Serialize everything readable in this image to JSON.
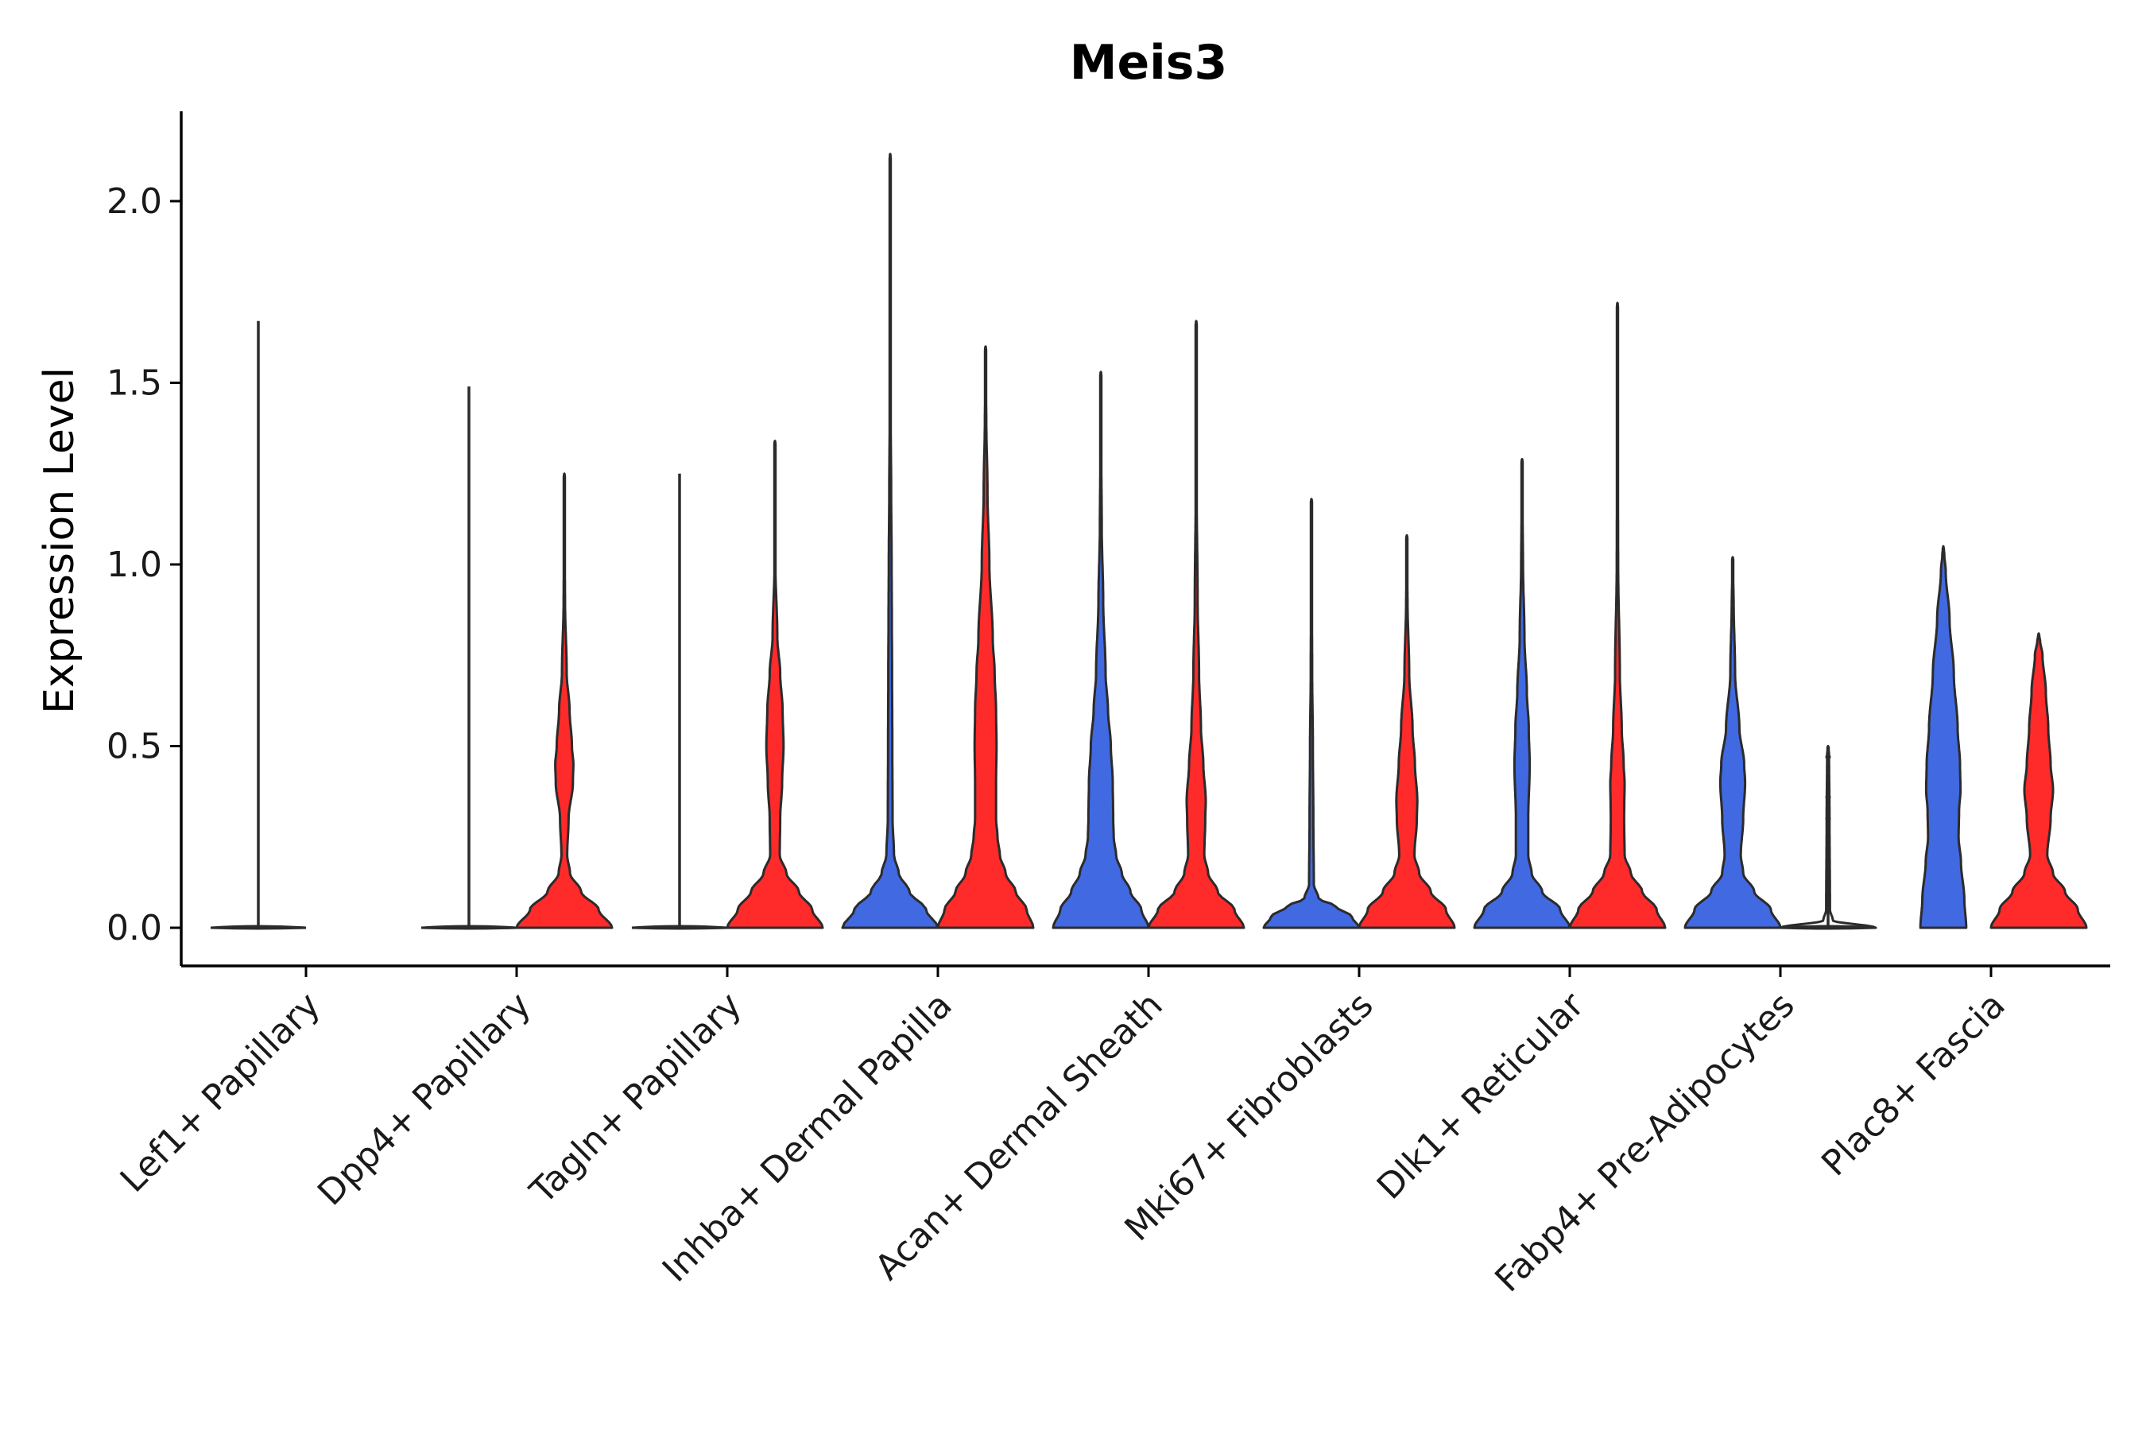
{
  "chart_data": {
    "type": "violin",
    "title": "Meis3",
    "xlabel": "",
    "ylabel": "Expression Level",
    "ylim": [
      -0.1,
      2.25
    ],
    "yticks": [
      "0.0",
      "0.5",
      "1.0",
      "1.5",
      "2.0"
    ],
    "grid": false,
    "legend": "none",
    "colors": {
      "group_a": "#4169e1",
      "group_b": "#ff2a2a",
      "outline": "#2b2b2b"
    },
    "categories": [
      "Lef1+ Papillary",
      "Dpp4+ Papillary",
      "Tagln+ Papillary",
      "Inhba+ Dermal Papilla",
      "Acan+ Dermal Sheath",
      "Mki67+ Fibroblasts",
      "Dlk1+ Reticular",
      "Fabp4+ Pre-Adipocytes",
      "Plac8+ Fascia"
    ],
    "series": [
      {
        "name": "group_a",
        "color": "#4169e1",
        "max_values": [
          1.67,
          1.49,
          1.25,
          2.13,
          1.53,
          1.18,
          1.29,
          1.02,
          1.03
        ],
        "density_profile": [
          [
            [
              0,
              1
            ]
          ],
          [
            [
              0,
              1
            ]
          ],
          [
            [
              0,
              1
            ]
          ],
          [
            [
              0,
              1
            ],
            [
              0.05,
              0.75
            ],
            [
              0.1,
              0.4
            ],
            [
              0.15,
              0.18
            ],
            [
              0.2,
              0.08
            ],
            [
              0.3,
              0.05
            ],
            [
              0.5,
              0.045
            ],
            [
              0.7,
              0.04
            ],
            [
              0.85,
              0.035
            ],
            [
              1.0,
              0.03
            ],
            [
              1.2,
              0.02
            ],
            [
              1.5,
              0.005
            ]
          ],
          [
            [
              0,
              1
            ],
            [
              0.05,
              0.85
            ],
            [
              0.1,
              0.62
            ],
            [
              0.15,
              0.44
            ],
            [
              0.2,
              0.32
            ],
            [
              0.25,
              0.27
            ],
            [
              0.3,
              0.26
            ],
            [
              0.4,
              0.25
            ],
            [
              0.5,
              0.21
            ],
            [
              0.6,
              0.15
            ],
            [
              0.7,
              0.1
            ],
            [
              0.9,
              0.05
            ],
            [
              1.1,
              0.02
            ],
            [
              1.3,
              0.01
            ]
          ],
          [
            [
              0,
              1
            ],
            [
              0.03,
              0.85
            ],
            [
              0.06,
              0.5
            ],
            [
              0.08,
              0.15
            ],
            [
              0.12,
              0.05
            ],
            [
              0.3,
              0.04
            ],
            [
              0.5,
              0.03
            ],
            [
              0.7,
              0.015
            ],
            [
              1.0,
              0.005
            ]
          ],
          [
            [
              0,
              1
            ],
            [
              0.05,
              0.8
            ],
            [
              0.1,
              0.42
            ],
            [
              0.15,
              0.2
            ],
            [
              0.2,
              0.13
            ],
            [
              0.3,
              0.13
            ],
            [
              0.45,
              0.16
            ],
            [
              0.55,
              0.14
            ],
            [
              0.65,
              0.1
            ],
            [
              0.8,
              0.05
            ],
            [
              1.0,
              0.02
            ]
          ],
          [
            [
              0,
              1
            ],
            [
              0.05,
              0.8
            ],
            [
              0.1,
              0.45
            ],
            [
              0.15,
              0.22
            ],
            [
              0.2,
              0.17
            ],
            [
              0.3,
              0.22
            ],
            [
              0.4,
              0.26
            ],
            [
              0.45,
              0.24
            ],
            [
              0.55,
              0.14
            ],
            [
              0.7,
              0.05
            ],
            [
              0.9,
              0.02
            ]
          ],
          [
            [
              0,
              0.48
            ],
            [
              0.08,
              0.44
            ],
            [
              0.18,
              0.37
            ],
            [
              0.25,
              0.32
            ],
            [
              0.32,
              0.33
            ],
            [
              0.38,
              0.36
            ],
            [
              0.45,
              0.35
            ],
            [
              0.55,
              0.3
            ],
            [
              0.7,
              0.22
            ],
            [
              0.85,
              0.13
            ],
            [
              0.98,
              0.05
            ],
            [
              1.03,
              0.02
            ]
          ]
        ]
      },
      {
        "name": "group_b",
        "color": "#ff2a2a",
        "max_values": [
          null,
          1.25,
          1.34,
          1.6,
          1.67,
          1.08,
          1.72,
          0.48,
          0.79
        ],
        "density_profile": [
          null,
          [
            [
              0,
              1
            ],
            [
              0.05,
              0.72
            ],
            [
              0.1,
              0.35
            ],
            [
              0.15,
              0.12
            ],
            [
              0.2,
              0.06
            ],
            [
              0.3,
              0.09
            ],
            [
              0.4,
              0.18
            ],
            [
              0.45,
              0.19
            ],
            [
              0.5,
              0.16
            ],
            [
              0.6,
              0.11
            ],
            [
              0.7,
              0.05
            ],
            [
              0.9,
              0.015
            ]
          ],
          [
            [
              0,
              1
            ],
            [
              0.05,
              0.78
            ],
            [
              0.1,
              0.5
            ],
            [
              0.15,
              0.24
            ],
            [
              0.2,
              0.1
            ],
            [
              0.3,
              0.11
            ],
            [
              0.4,
              0.15
            ],
            [
              0.5,
              0.18
            ],
            [
              0.6,
              0.16
            ],
            [
              0.7,
              0.11
            ],
            [
              0.8,
              0.05
            ],
            [
              1.0,
              0.01
            ]
          ],
          [
            [
              0,
              1
            ],
            [
              0.05,
              0.86
            ],
            [
              0.1,
              0.63
            ],
            [
              0.15,
              0.42
            ],
            [
              0.2,
              0.3
            ],
            [
              0.25,
              0.25
            ],
            [
              0.3,
              0.22
            ],
            [
              0.4,
              0.22
            ],
            [
              0.5,
              0.23
            ],
            [
              0.6,
              0.22
            ],
            [
              0.7,
              0.19
            ],
            [
              0.8,
              0.15
            ],
            [
              1.0,
              0.08
            ],
            [
              1.2,
              0.04
            ],
            [
              1.4,
              0.015
            ]
          ],
          [
            [
              0,
              1
            ],
            [
              0.05,
              0.8
            ],
            [
              0.1,
              0.45
            ],
            [
              0.15,
              0.25
            ],
            [
              0.2,
              0.17
            ],
            [
              0.3,
              0.19
            ],
            [
              0.35,
              0.2
            ],
            [
              0.45,
              0.15
            ],
            [
              0.55,
              0.1
            ],
            [
              0.7,
              0.06
            ],
            [
              0.9,
              0.03
            ],
            [
              1.2,
              0.01
            ]
          ],
          [
            [
              0,
              1
            ],
            [
              0.05,
              0.82
            ],
            [
              0.1,
              0.5
            ],
            [
              0.15,
              0.26
            ],
            [
              0.2,
              0.16
            ],
            [
              0.3,
              0.21
            ],
            [
              0.35,
              0.22
            ],
            [
              0.45,
              0.17
            ],
            [
              0.55,
              0.12
            ],
            [
              0.7,
              0.05
            ],
            [
              0.9,
              0.015
            ]
          ],
          [
            [
              0,
              1
            ],
            [
              0.05,
              0.82
            ],
            [
              0.1,
              0.52
            ],
            [
              0.15,
              0.28
            ],
            [
              0.2,
              0.15
            ],
            [
              0.3,
              0.14
            ],
            [
              0.4,
              0.15
            ],
            [
              0.45,
              0.13
            ],
            [
              0.55,
              0.09
            ],
            [
              0.7,
              0.05
            ],
            [
              1.0,
              0.015
            ]
          ],
          [
            [
              0,
              1
            ],
            [
              0.02,
              0.1
            ],
            [
              0.05,
              0.04
            ],
            [
              0.3,
              0.03
            ],
            [
              0.48,
              0.02
            ]
          ],
          [
            [
              0,
              1
            ],
            [
              0.05,
              0.82
            ],
            [
              0.1,
              0.55
            ],
            [
              0.15,
              0.3
            ],
            [
              0.2,
              0.18
            ],
            [
              0.3,
              0.25
            ],
            [
              0.38,
              0.3
            ],
            [
              0.45,
              0.25
            ],
            [
              0.55,
              0.2
            ],
            [
              0.65,
              0.15
            ],
            [
              0.75,
              0.08
            ],
            [
              0.79,
              0.03
            ]
          ]
        ]
      }
    ]
  }
}
